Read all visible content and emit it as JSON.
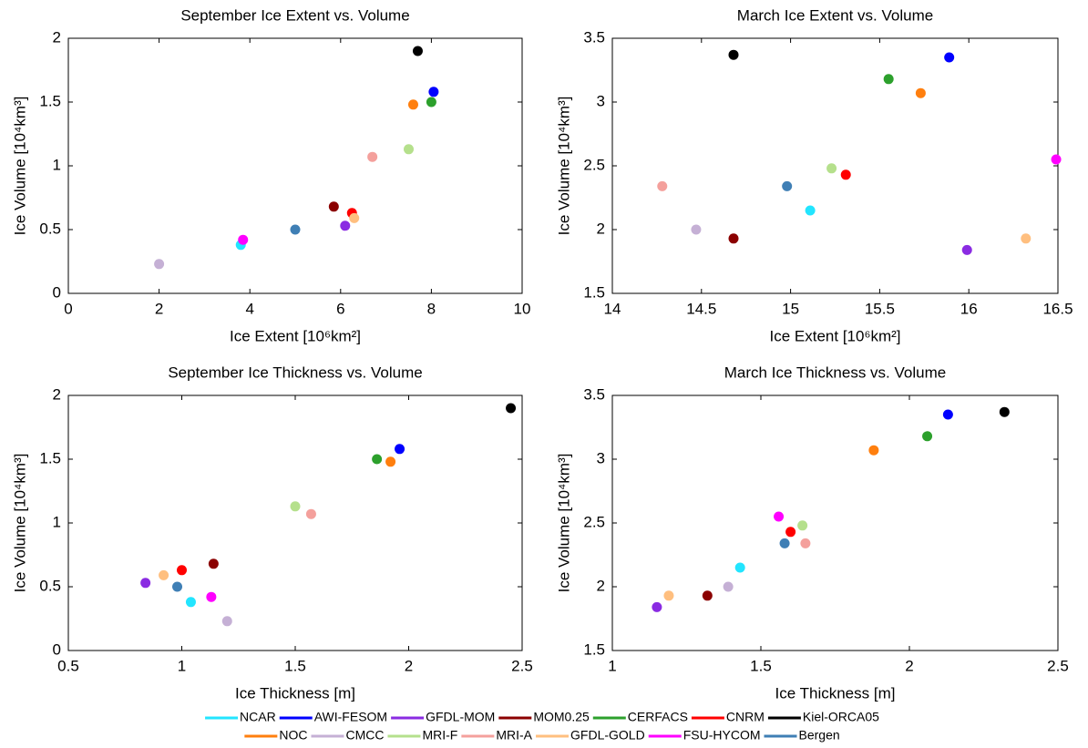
{
  "legend": {
    "names": [
      "NCAR",
      "AWI-FESOM",
      "GFDL-MOM",
      "MOM0.25",
      "CERFACS",
      "CNRM",
      "Kiel-ORCA05",
      "NOC",
      "CMCC",
      "MRI-F",
      "MRI-A",
      "GFDL-GOLD",
      "FSU-HYCOM",
      "Bergen"
    ],
    "colors": [
      "#22e5ff",
      "#0000ff",
      "#8a2be2",
      "#8b0000",
      "#2ca02c",
      "#ff0000",
      "#000000",
      "#ff7f0e",
      "#c5b0d5",
      "#b5e08c",
      "#f4a09c",
      "#ffbf7f",
      "#ff00ff",
      "#3f7fb5"
    ]
  },
  "chart_data": [
    {
      "type": "scatter",
      "title": "September Ice Extent vs. Volume",
      "xlabel": "Ice Extent [10⁶km²]",
      "ylabel": "Ice Volume [10⁴km³]",
      "x": [
        3.8,
        8.05,
        6.1,
        5.85,
        8.0,
        6.25,
        7.7,
        7.6,
        2.0,
        7.5,
        6.7,
        6.3,
        3.85,
        5.0
      ],
      "values": [
        0.38,
        1.58,
        0.53,
        0.68,
        1.5,
        0.63,
        1.9,
        1.48,
        0.23,
        1.13,
        1.07,
        0.59,
        0.42,
        0.5
      ],
      "xlim": [
        0,
        10
      ],
      "xticks": [
        0,
        2,
        4,
        6,
        8,
        10
      ],
      "ylim": [
        0,
        2
      ],
      "yticks": [
        0,
        0.5,
        1,
        1.5,
        2
      ]
    },
    {
      "type": "scatter",
      "title": "March Ice Extent vs. Volume",
      "xlabel": "Ice Extent [10⁶km²]",
      "ylabel": "Ice Volume [10⁴km³]",
      "x": [
        15.11,
        15.89,
        15.99,
        14.68,
        15.55,
        15.31,
        14.68,
        15.73,
        14.47,
        15.23,
        14.28,
        16.32,
        16.49,
        14.98
      ],
      "values": [
        2.15,
        3.35,
        1.84,
        1.93,
        3.18,
        2.43,
        3.37,
        3.07,
        2.0,
        2.48,
        2.34,
        1.93,
        2.55,
        2.34
      ],
      "xlim": [
        14,
        16.5
      ],
      "xticks": [
        14,
        14.5,
        15,
        15.5,
        16,
        16.5
      ],
      "ylim": [
        1.5,
        3.5
      ],
      "yticks": [
        1.5,
        2,
        2.5,
        3,
        3.5
      ]
    },
    {
      "type": "scatter",
      "title": "September Ice Thickness vs. Volume",
      "xlabel": "Ice Thickness [m]",
      "ylabel": "Ice Volume [10⁴km³]",
      "x": [
        1.04,
        1.96,
        0.84,
        1.14,
        1.86,
        1.0,
        2.45,
        1.92,
        1.2,
        1.5,
        1.57,
        0.92,
        1.13,
        0.98
      ],
      "values": [
        0.38,
        1.58,
        0.53,
        0.68,
        1.5,
        0.63,
        1.9,
        1.48,
        0.23,
        1.13,
        1.07,
        0.59,
        0.42,
        0.5
      ],
      "xlim": [
        0.5,
        2.5
      ],
      "xticks": [
        0.5,
        1,
        1.5,
        2,
        2.5
      ],
      "ylim": [
        0,
        2
      ],
      "yticks": [
        0,
        0.5,
        1,
        1.5,
        2
      ]
    },
    {
      "type": "scatter",
      "title": "March Ice Thickness vs. Volume",
      "xlabel": "Ice Thickness [m]",
      "ylabel": "Ice Volume [10⁴km³]",
      "x": [
        1.43,
        2.13,
        1.15,
        1.32,
        2.06,
        1.6,
        2.32,
        1.88,
        1.39,
        1.64,
        1.65,
        1.19,
        1.56,
        1.58
      ],
      "values": [
        2.15,
        3.35,
        1.84,
        1.93,
        3.18,
        2.43,
        3.37,
        3.07,
        2.0,
        2.48,
        2.34,
        1.93,
        2.55,
        2.34
      ],
      "xlim": [
        1,
        2.5
      ],
      "xticks": [
        1,
        1.5,
        2,
        2.5
      ],
      "ylim": [
        1.5,
        3.5
      ],
      "yticks": [
        1.5,
        2,
        2.5,
        3,
        3.5
      ]
    }
  ]
}
